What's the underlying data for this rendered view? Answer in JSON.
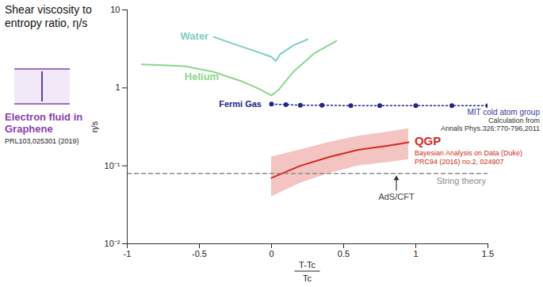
{
  "chart_data": {
    "type": "line",
    "title": "Shear viscosity to entropy ratio, η/s",
    "y_label": "η/s",
    "x_label": [
      "T-Tc",
      "Tc"
    ],
    "log": "y",
    "xlim": [
      -1,
      1.5
    ],
    "xticks": [
      -1,
      -0.5,
      0,
      0.5,
      1,
      1.5
    ],
    "ylim": [
      0.01,
      10
    ],
    "yticks": [
      {
        "value": 0.01,
        "label": "10⁻²"
      },
      {
        "value": 0.1,
        "label": "10⁻¹"
      },
      1,
      10
    ],
    "grid": false,
    "series": [
      {
        "name": "Water",
        "color": "#7fcdc4",
        "line_style": "solid",
        "x": [
          -0.4,
          -0.25,
          -0.1,
          0,
          0.03,
          0.06,
          0.15,
          0.25
        ],
        "values": [
          4.5,
          3.6,
          2.9,
          2.5,
          2.2,
          2.7,
          3.5,
          4.2
        ]
      },
      {
        "name": "Helium",
        "color": "#8bd68b",
        "line_style": "solid",
        "x": [
          -0.9,
          -0.75,
          -0.6,
          -0.4,
          -0.2,
          -0.1,
          0,
          0.05,
          0.15,
          0.3,
          0.45
        ],
        "values": [
          2.0,
          1.95,
          1.9,
          1.6,
          1.2,
          1.0,
          0.8,
          0.95,
          1.6,
          2.8,
          4.0
        ]
      },
      {
        "name": "Fermi Gas",
        "color": "#23238f",
        "line_style": "dotted",
        "marker": "circle",
        "x": [
          0,
          0.1,
          0.2,
          0.35,
          0.55,
          0.75,
          1.0,
          1.25,
          1.5
        ],
        "values": [
          0.62,
          0.61,
          0.6,
          0.6,
          0.59,
          0.59,
          0.59,
          0.59,
          0.59
        ],
        "note": [
          "MIT cold atom group",
          "Calculation from",
          "Annals Phys.326:770-796,2011"
        ]
      },
      {
        "name": "QGP",
        "color": "#d42a20",
        "line_style": "solid",
        "x": [
          0,
          0.2,
          0.4,
          0.6,
          0.8,
          0.95
        ],
        "values": [
          0.07,
          0.1,
          0.13,
          0.16,
          0.18,
          0.2
        ],
        "lower": [
          0.04,
          0.06,
          0.08,
          0.1,
          0.11,
          0.12
        ],
        "upper": [
          0.13,
          0.16,
          0.2,
          0.24,
          0.27,
          0.3
        ],
        "note": [
          "Bayesian Analysis on Data (Duke)",
          "PRC94 (2016) no.2, 024907"
        ]
      },
      {
        "name": "String theory",
        "color": "#8c8c8c",
        "line_style": "dashed",
        "x": [
          -1,
          1.5
        ],
        "values": [
          0.08,
          0.08
        ],
        "note": [
          "AdS/CFT"
        ]
      }
    ],
    "annotations": [
      {
        "text": "Electron fluid in Graphene",
        "color": "#8a3fb0"
      },
      {
        "text": "PRL103,025301 (2019)"
      }
    ]
  }
}
